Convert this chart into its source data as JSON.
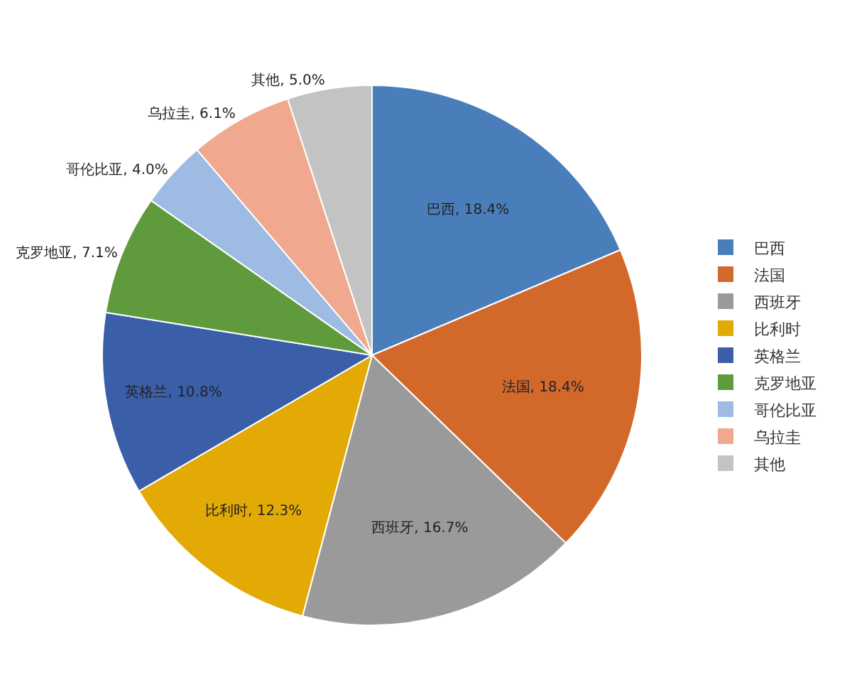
{
  "chart_data": {
    "type": "pie",
    "categories": [
      "巴西",
      "法国",
      "西班牙",
      "比利时",
      "英格兰",
      "克罗地亚",
      "哥伦比亚",
      "乌拉圭",
      "其他"
    ],
    "values": [
      18.4,
      18.4,
      16.7,
      12.3,
      10.8,
      7.1,
      4.0,
      6.1,
      5.0
    ],
    "colors": [
      "#4a7ebb",
      "#d2692b",
      "#9a9a9a",
      "#e3aa06",
      "#3b5ea9",
      "#5f9a3c",
      "#9dbbe3",
      "#f0a88e",
      "#c3c3c3"
    ],
    "value_labels": [
      "巴西, 18.4%",
      "法国, 18.4%",
      "西班牙, 16.7%",
      "比利时, 12.3%",
      "英格兰, 10.8%",
      "克罗地亚, 7.1%",
      "哥伦比亚, 4.0%",
      "乌拉圭, 6.1%",
      "其他, 5.0%"
    ],
    "legend": "right"
  }
}
